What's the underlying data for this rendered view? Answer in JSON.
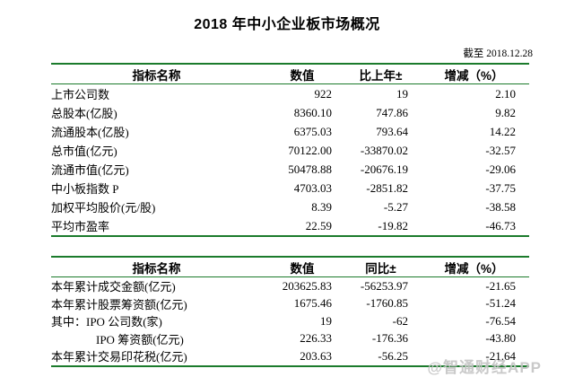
{
  "page": {
    "title": "2018 年中小企业板市场概况",
    "as_of": "截至 2018.12.28",
    "watermark": "@智通财经APP"
  },
  "colors": {
    "rule_green": "#1b7b2c",
    "text": "#000000",
    "watermark_gray": "#c4c4c4"
  },
  "table1": {
    "headers": [
      "指标名称",
      "数值",
      "比上年±",
      "增减（%）"
    ],
    "rows": [
      {
        "name": "上市公司数",
        "value": "922",
        "change": "19",
        "pct": "2.10",
        "indent": false
      },
      {
        "name": "总股本(亿股)",
        "value": "8360.10",
        "change": "747.86",
        "pct": "9.82",
        "indent": false
      },
      {
        "name": "流通股本(亿股)",
        "value": "6375.03",
        "change": "793.64",
        "pct": "14.22",
        "indent": false
      },
      {
        "name": "总市值(亿元)",
        "value": "70122.00",
        "change": "-33870.02",
        "pct": "-32.57",
        "indent": false
      },
      {
        "name": "流通市值(亿元)",
        "value": "50478.88",
        "change": "-20676.19",
        "pct": "-29.06",
        "indent": false
      },
      {
        "name": "中小板指数 P",
        "value": "4703.03",
        "change": "-2851.82",
        "pct": "-37.75",
        "indent": false
      },
      {
        "name": "加权平均股价(元/股)",
        "value": "8.39",
        "change": "-5.27",
        "pct": "-38.58",
        "indent": false
      },
      {
        "name": "平均市盈率",
        "value": "22.59",
        "change": "-19.82",
        "pct": "-46.73",
        "indent": false
      }
    ]
  },
  "table2": {
    "headers": [
      "指标名称",
      "数值",
      "同比±",
      "增减（%）"
    ],
    "rows": [
      {
        "name": "本年累计成交金额(亿元)",
        "value": "203625.83",
        "change": "-56253.97",
        "pct": "-21.65",
        "indent": false
      },
      {
        "name": "本年累计股票筹资额(亿元)",
        "value": "1675.46",
        "change": "-1760.85",
        "pct": "-51.24",
        "indent": false
      },
      {
        "name": "其中：IPO 公司数(家)",
        "value": "19",
        "change": "-62",
        "pct": "-76.54",
        "indent": false
      },
      {
        "name": "IPO 筹资额(亿元)",
        "value": "226.33",
        "change": "-176.36",
        "pct": "-43.80",
        "indent": true
      },
      {
        "name": "本年累计交易印花税(亿元)",
        "value": "203.63",
        "change": "-56.25",
        "pct": "-21.64",
        "indent": false
      }
    ]
  }
}
